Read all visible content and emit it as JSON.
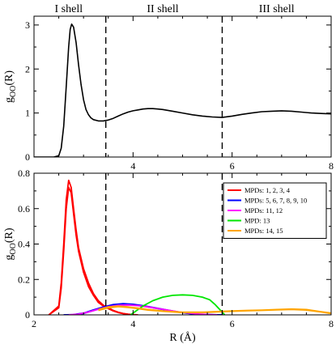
{
  "chart_data": [
    {
      "type": "line",
      "panel": "top",
      "xlabel": "",
      "ylabel": "g",
      "ylabel_sub": "OO",
      "ylabel_suffix": "(R)",
      "xlim": [
        2,
        8
      ],
      "ylim": [
        0,
        3.2
      ],
      "xticks": [
        {
          "v": 4,
          "label": "4"
        },
        {
          "v": 6,
          "label": "6"
        },
        {
          "v": 8,
          "label": "8"
        }
      ],
      "yticks": [
        {
          "v": 0,
          "label": "0"
        },
        {
          "v": 1,
          "label": "1"
        },
        {
          "v": 2,
          "label": "2"
        },
        {
          "v": 3,
          "label": "3"
        }
      ],
      "vlines": [
        3.45,
        5.8
      ],
      "shell_labels": [
        {
          "text": "I shell",
          "x": 2.7
        },
        {
          "text": "II shell",
          "x": 4.6
        },
        {
          "text": "III shell",
          "x": 6.9
        }
      ],
      "series": [
        {
          "color": "#000000",
          "x": [
            2.0,
            2.4,
            2.5,
            2.55,
            2.6,
            2.65,
            2.7,
            2.73,
            2.76,
            2.8,
            2.85,
            2.9,
            2.95,
            3.0,
            3.05,
            3.1,
            3.15,
            3.2,
            3.3,
            3.4,
            3.5,
            3.6,
            3.7,
            3.8,
            3.9,
            4.0,
            4.1,
            4.2,
            4.3,
            4.4,
            4.5,
            4.6,
            4.8,
            5.0,
            5.2,
            5.4,
            5.6,
            5.8,
            6.0,
            6.2,
            6.4,
            6.6,
            6.8,
            7.0,
            7.2,
            7.4,
            7.6,
            7.8,
            8.0
          ],
          "y": [
            0,
            0,
            0.03,
            0.2,
            0.7,
            1.6,
            2.5,
            2.9,
            3.02,
            2.95,
            2.6,
            2.1,
            1.65,
            1.3,
            1.08,
            0.96,
            0.89,
            0.85,
            0.82,
            0.82,
            0.84,
            0.88,
            0.93,
            0.98,
            1.02,
            1.05,
            1.07,
            1.09,
            1.1,
            1.1,
            1.09,
            1.08,
            1.04,
            1.0,
            0.96,
            0.93,
            0.91,
            0.9,
            0.93,
            0.97,
            1.0,
            1.03,
            1.04,
            1.05,
            1.04,
            1.02,
            1.0,
            0.99,
            0.98
          ]
        }
      ]
    },
    {
      "type": "line",
      "panel": "bottom",
      "xlabel": "R (Å)",
      "ylabel": "g",
      "ylabel_sub": "OO",
      "ylabel_suffix": "(R)",
      "xlim": [
        2,
        8
      ],
      "ylim": [
        0,
        0.8
      ],
      "xticks": [
        {
          "v": 2,
          "label": "2"
        },
        {
          "v": 4,
          "label": "4"
        },
        {
          "v": 6,
          "label": "6"
        },
        {
          "v": 8,
          "label": "8"
        }
      ],
      "yticks": [
        {
          "v": 0,
          "label": "0"
        },
        {
          "v": 0.2,
          "label": "0.2"
        },
        {
          "v": 0.4,
          "label": "0.4"
        },
        {
          "v": 0.6,
          "label": "0.6"
        },
        {
          "v": 0.8,
          "label": "0.8"
        }
      ],
      "vlines": [
        3.45,
        5.8
      ],
      "legend_position": "top-right",
      "series": [
        {
          "name": "MPDs: 1, 2, 3, 4",
          "color": "#ff0000",
          "curves": [
            {
              "x": [
                2.3,
                2.5,
                2.55,
                2.6,
                2.65,
                2.7,
                2.75,
                2.8,
                2.85,
                2.9,
                3.0,
                3.1,
                3.2,
                3.3,
                3.4,
                3.5,
                3.6,
                3.7,
                3.8,
                3.9,
                4.0,
                4.1
              ],
              "y": [
                0,
                0.05,
                0.18,
                0.4,
                0.65,
                0.76,
                0.72,
                0.6,
                0.48,
                0.38,
                0.26,
                0.18,
                0.12,
                0.08,
                0.055,
                0.04,
                0.025,
                0.015,
                0.008,
                0.004,
                0.002,
                0
              ]
            },
            {
              "x": [
                2.3,
                2.5,
                2.55,
                2.6,
                2.65,
                2.7,
                2.75,
                2.8,
                2.85,
                2.9,
                3.0,
                3.1,
                3.2,
                3.3,
                3.4,
                3.5,
                3.6,
                3.7,
                3.8,
                3.9,
                4.0,
                4.1
              ],
              "y": [
                0,
                0.04,
                0.15,
                0.36,
                0.6,
                0.72,
                0.69,
                0.57,
                0.45,
                0.36,
                0.24,
                0.16,
                0.11,
                0.07,
                0.05,
                0.035,
                0.022,
                0.013,
                0.007,
                0.003,
                0.001,
                0
              ]
            }
          ]
        },
        {
          "name": "MPDs: 5, 6, 7, 8, 9, 10",
          "color": "#0000ff",
          "curves": [
            {
              "x": [
                2.6,
                2.8,
                3.0,
                3.2,
                3.4,
                3.6,
                3.8,
                4.0,
                4.2,
                4.4,
                4.6,
                4.8,
                5.0,
                5.2,
                5.4,
                5.6,
                5.8
              ],
              "y": [
                0,
                0.002,
                0.01,
                0.028,
                0.045,
                0.058,
                0.063,
                0.06,
                0.052,
                0.042,
                0.032,
                0.022,
                0.013,
                0.006,
                0.002,
                0.001,
                0
              ]
            },
            {
              "x": [
                2.6,
                2.8,
                3.0,
                3.2,
                3.4,
                3.6,
                3.8,
                4.0,
                4.2,
                4.4,
                4.6,
                4.8,
                5.0,
                5.2,
                5.4,
                5.6,
                5.8
              ],
              "y": [
                0,
                0.001,
                0.008,
                0.024,
                0.04,
                0.052,
                0.058,
                0.057,
                0.05,
                0.04,
                0.03,
                0.02,
                0.012,
                0.006,
                0.002,
                0.001,
                0
              ]
            }
          ]
        },
        {
          "name": "MPDs: 11, 12",
          "color": "#ff00ff",
          "curves": [
            {
              "x": [
                2.7,
                2.9,
                3.1,
                3.3,
                3.5,
                3.7,
                3.9,
                4.1,
                4.3,
                4.5,
                4.7,
                4.9,
                5.1,
                5.3,
                5.5,
                5.7
              ],
              "y": [
                0,
                0.004,
                0.016,
                0.032,
                0.046,
                0.054,
                0.056,
                0.052,
                0.045,
                0.036,
                0.027,
                0.018,
                0.011,
                0.005,
                0.002,
                0
              ]
            }
          ]
        },
        {
          "name": "MPD: 13",
          "color": "#00e600",
          "curves": [
            {
              "x": [
                3.95,
                4.05,
                4.2,
                4.4,
                4.6,
                4.8,
                5.0,
                5.2,
                5.4,
                5.55,
                5.65,
                5.75,
                5.85
              ],
              "y": [
                0,
                0.02,
                0.05,
                0.08,
                0.1,
                0.11,
                0.113,
                0.11,
                0.1,
                0.085,
                0.06,
                0.03,
                0
              ]
            }
          ]
        },
        {
          "name": "MPDs: 14, 15",
          "color": "#ffa500",
          "curves": [
            {
              "x": [
                3.3,
                3.5,
                3.7,
                3.9,
                4.1,
                4.3,
                4.6,
                5.0,
                5.4,
                5.8,
                6.0,
                6.3,
                6.6,
                6.9,
                7.2,
                7.5,
                7.8,
                8.0
              ],
              "y": [
                0.03,
                0.045,
                0.05,
                0.045,
                0.038,
                0.03,
                0.022,
                0.015,
                0.015,
                0.02,
                0.022,
                0.025,
                0.027,
                0.03,
                0.033,
                0.03,
                0.018,
                0.01
              ]
            },
            {
              "x": [
                3.3,
                3.5,
                3.7,
                3.9,
                4.1,
                4.3,
                4.6,
                5.0,
                5.4,
                5.8,
                6.0,
                6.3,
                6.6,
                6.9,
                7.2,
                7.5,
                7.8,
                8.0
              ],
              "y": [
                0.025,
                0.04,
                0.046,
                0.042,
                0.035,
                0.027,
                0.02,
                0.013,
                0.013,
                0.018,
                0.02,
                0.023,
                0.025,
                0.028,
                0.03,
                0.027,
                0.016,
                0.008
              ]
            }
          ]
        }
      ]
    }
  ]
}
